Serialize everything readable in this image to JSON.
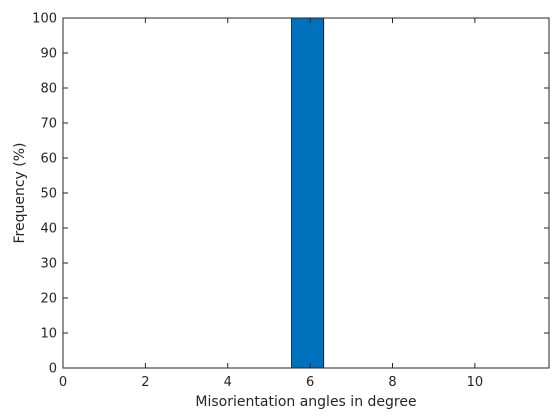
{
  "chart_data": {
    "type": "bar",
    "title": "",
    "xlabel": "Misorientation angles in degree",
    "ylabel": "Frequency (%)",
    "bins": [
      {
        "x_start": 5.55,
        "x_end": 6.33,
        "value": 100
      }
    ],
    "xlim": [
      0,
      11.8
    ],
    "ylim": [
      0,
      100
    ],
    "xticks": [
      0,
      2,
      4,
      6,
      8,
      10
    ],
    "yticks": [
      0,
      10,
      20,
      30,
      40,
      50,
      60,
      70,
      80,
      90,
      100
    ],
    "bar_color": "#0072bd",
    "grid": false,
    "legend": "none"
  }
}
